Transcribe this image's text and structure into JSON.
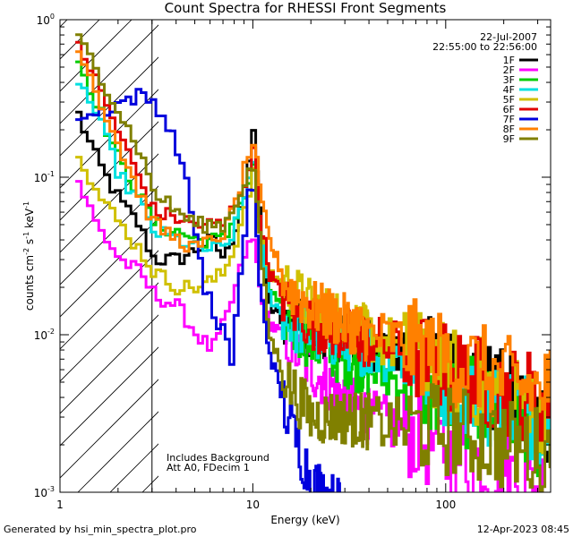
{
  "chart_data": {
    "type": "line",
    "title": "Count Spectra for RHESSI Front Segments",
    "xlabel": "Energy (keV)",
    "ylabel": "counts cm⁻² s⁻¹ keV⁻¹",
    "ylabel_parts": {
      "base": "counts cm",
      "sup1": "-2",
      "mid": " s",
      "sup2": "-1",
      "unit": " keV",
      "sup3": "-1"
    },
    "x_scale": "log",
    "y_scale": "log",
    "xlim": [
      1,
      350
    ],
    "ylim": [
      0.001,
      1
    ],
    "x_ticks": [
      {
        "value": 1,
        "label": "1"
      },
      {
        "value": 10,
        "label": "10"
      },
      {
        "value": 100,
        "label": "100"
      }
    ],
    "y_ticks": [
      {
        "value": 0.001,
        "label": "10",
        "exp": "-3"
      },
      {
        "value": 0.01,
        "label": "10",
        "exp": "-2"
      },
      {
        "value": 0.1,
        "label": "10",
        "exp": "-1"
      },
      {
        "value": 1,
        "label": "10",
        "exp": "0"
      }
    ],
    "date": "22-Jul-2007",
    "time_range": "22:55:00 to 22:56:00",
    "shaded_region_upper_keV": 3,
    "annotations": [
      "Includes Background",
      "Att A0, FDecim 1"
    ],
    "footer_left": "Generated by hsi_min_spectra_plot.pro",
    "footer_right": "12-Apr-2023 08:45",
    "series": [
      {
        "name": "1F",
        "color": "#000000",
        "anchors": [
          [
            1.2,
            0.25
          ],
          [
            1.5,
            0.13
          ],
          [
            2,
            0.07
          ],
          [
            2.5,
            0.05
          ],
          [
            3,
            0.03
          ],
          [
            4,
            0.03
          ],
          [
            5,
            0.035
          ],
          [
            6,
            0.04
          ],
          [
            7,
            0.03
          ],
          [
            8,
            0.05
          ],
          [
            9,
            0.1
          ],
          [
            10,
            0.2
          ],
          [
            10.7,
            0.06
          ],
          [
            12,
            0.015
          ],
          [
            15,
            0.012
          ],
          [
            20,
            0.011
          ],
          [
            30,
            0.01
          ],
          [
            40,
            0.009
          ],
          [
            60,
            0.008
          ],
          [
            100,
            0.006
          ],
          [
            150,
            0.005
          ],
          [
            200,
            0.004
          ],
          [
            300,
            0.003
          ],
          [
            350,
            0.003
          ]
        ]
      },
      {
        "name": "2F",
        "color": "#ff00ff",
        "anchors": [
          [
            1.2,
            0.095
          ],
          [
            1.5,
            0.05
          ],
          [
            2,
            0.03
          ],
          [
            2.5,
            0.025
          ],
          [
            3,
            0.018
          ],
          [
            4,
            0.015
          ],
          [
            5,
            0.01
          ],
          [
            6,
            0.008
          ],
          [
            7,
            0.012
          ],
          [
            8,
            0.02
          ],
          [
            9,
            0.035
          ],
          [
            10,
            0.04
          ],
          [
            10.7,
            0.02
          ],
          [
            12,
            0.012
          ],
          [
            15,
            0.009
          ],
          [
            20,
            0.006
          ],
          [
            30,
            0.004
          ],
          [
            40,
            0.003
          ],
          [
            60,
            0.0025
          ],
          [
            100,
            0.0018
          ],
          [
            150,
            0.0015
          ],
          [
            200,
            0.0013
          ],
          [
            300,
            0.0011
          ],
          [
            350,
            0.0011
          ]
        ]
      },
      {
        "name": "3F",
        "color": "#00cc00",
        "anchors": [
          [
            1.2,
            0.55
          ],
          [
            1.5,
            0.3
          ],
          [
            2,
            0.12
          ],
          [
            2.5,
            0.08
          ],
          [
            3,
            0.05
          ],
          [
            4,
            0.045
          ],
          [
            5,
            0.04
          ],
          [
            6,
            0.04
          ],
          [
            7,
            0.04
          ],
          [
            8,
            0.06
          ],
          [
            9,
            0.08
          ],
          [
            10,
            0.12
          ],
          [
            10.7,
            0.05
          ],
          [
            12,
            0.02
          ],
          [
            15,
            0.012
          ],
          [
            20,
            0.009
          ],
          [
            30,
            0.007
          ],
          [
            40,
            0.006
          ],
          [
            60,
            0.005
          ],
          [
            100,
            0.004
          ],
          [
            150,
            0.0035
          ],
          [
            200,
            0.003
          ],
          [
            300,
            0.0025
          ],
          [
            350,
            0.0025
          ]
        ]
      },
      {
        "name": "4F",
        "color": "#00e0e0",
        "anchors": [
          [
            1.2,
            0.42
          ],
          [
            1.5,
            0.25
          ],
          [
            2,
            0.1
          ],
          [
            2.5,
            0.07
          ],
          [
            3,
            0.045
          ],
          [
            4,
            0.04
          ],
          [
            5,
            0.035
          ],
          [
            6,
            0.035
          ],
          [
            7,
            0.035
          ],
          [
            8,
            0.05
          ],
          [
            9,
            0.08
          ],
          [
            10,
            0.15
          ],
          [
            10.7,
            0.05
          ],
          [
            12,
            0.018
          ],
          [
            15,
            0.012
          ],
          [
            20,
            0.01
          ],
          [
            30,
            0.009
          ],
          [
            40,
            0.008
          ],
          [
            60,
            0.007
          ],
          [
            100,
            0.005
          ],
          [
            150,
            0.004
          ],
          [
            200,
            0.0035
          ],
          [
            300,
            0.003
          ],
          [
            350,
            0.003
          ]
        ]
      },
      {
        "name": "5F",
        "color": "#d0c000",
        "anchors": [
          [
            1.2,
            0.15
          ],
          [
            1.5,
            0.08
          ],
          [
            2,
            0.05
          ],
          [
            2.5,
            0.035
          ],
          [
            3,
            0.025
          ],
          [
            4,
            0.02
          ],
          [
            5,
            0.02
          ],
          [
            6,
            0.022
          ],
          [
            7,
            0.025
          ],
          [
            8,
            0.04
          ],
          [
            9,
            0.07
          ],
          [
            10,
            0.12
          ],
          [
            10.7,
            0.05
          ],
          [
            12,
            0.025
          ],
          [
            15,
            0.02
          ],
          [
            20,
            0.015
          ],
          [
            30,
            0.012
          ],
          [
            40,
            0.01
          ],
          [
            60,
            0.008
          ],
          [
            100,
            0.006
          ],
          [
            150,
            0.005
          ],
          [
            200,
            0.004
          ],
          [
            300,
            0.0035
          ],
          [
            350,
            0.0035
          ]
        ]
      },
      {
        "name": "6F",
        "color": "#e00000",
        "anchors": [
          [
            1.2,
            0.72
          ],
          [
            1.5,
            0.4
          ],
          [
            2,
            0.18
          ],
          [
            2.5,
            0.1
          ],
          [
            3,
            0.06
          ],
          [
            4,
            0.055
          ],
          [
            5,
            0.05
          ],
          [
            6,
            0.05
          ],
          [
            7,
            0.05
          ],
          [
            8,
            0.07
          ],
          [
            9,
            0.1
          ],
          [
            10,
            0.15
          ],
          [
            10.7,
            0.06
          ],
          [
            12,
            0.025
          ],
          [
            15,
            0.015
          ],
          [
            20,
            0.012
          ],
          [
            30,
            0.01
          ],
          [
            40,
            0.009
          ],
          [
            60,
            0.008
          ],
          [
            100,
            0.006
          ],
          [
            150,
            0.005
          ],
          [
            200,
            0.0045
          ],
          [
            300,
            0.004
          ],
          [
            350,
            0.004
          ]
        ]
      },
      {
        "name": "7F",
        "color": "#0000dd",
        "anchors": [
          [
            1.2,
            0.25
          ],
          [
            1.5,
            0.25
          ],
          [
            2,
            0.3
          ],
          [
            2.5,
            0.33
          ],
          [
            3,
            0.3
          ],
          [
            3.3,
            0.25
          ],
          [
            4,
            0.15
          ],
          [
            4.5,
            0.08
          ],
          [
            5,
            0.04
          ],
          [
            5.5,
            0.02
          ],
          [
            6,
            0.015
          ],
          [
            6.5,
            0.01
          ],
          [
            7,
            0.012
          ],
          [
            7.5,
            0.005
          ],
          [
            8,
            0.015
          ],
          [
            9,
            0.05
          ],
          [
            9.5,
            0.1
          ],
          [
            10,
            0.08
          ],
          [
            10.7,
            0.02
          ],
          [
            12,
            0.008
          ],
          [
            15,
            0.003
          ],
          [
            17,
            0.002
          ],
          [
            20,
            0.0012
          ],
          [
            25,
            0.0009
          ],
          [
            30,
            0.0008
          ]
        ]
      },
      {
        "name": "8F",
        "color": "#ff8000",
        "anchors": [
          [
            1.2,
            0.7
          ],
          [
            1.5,
            0.35
          ],
          [
            2,
            0.15
          ],
          [
            2.5,
            0.08
          ],
          [
            3,
            0.05
          ],
          [
            4,
            0.04
          ],
          [
            5,
            0.035
          ],
          [
            6,
            0.04
          ],
          [
            7,
            0.045
          ],
          [
            8,
            0.07
          ],
          [
            9,
            0.12
          ],
          [
            10,
            0.18
          ],
          [
            10.7,
            0.08
          ],
          [
            12,
            0.04
          ],
          [
            15,
            0.02
          ],
          [
            20,
            0.015
          ],
          [
            30,
            0.012
          ],
          [
            40,
            0.01
          ],
          [
            60,
            0.009
          ],
          [
            100,
            0.007
          ],
          [
            150,
            0.006
          ],
          [
            200,
            0.005
          ],
          [
            300,
            0.0045
          ],
          [
            350,
            0.0045
          ]
        ]
      },
      {
        "name": "9F",
        "color": "#808000",
        "anchors": [
          [
            1.2,
            0.75
          ],
          [
            1.5,
            0.5
          ],
          [
            2,
            0.25
          ],
          [
            2.5,
            0.15
          ],
          [
            3,
            0.08
          ],
          [
            4,
            0.06
          ],
          [
            5,
            0.05
          ],
          [
            6,
            0.05
          ],
          [
            7,
            0.05
          ],
          [
            8,
            0.07
          ],
          [
            9,
            0.1
          ],
          [
            10,
            0.12
          ],
          [
            10.7,
            0.04
          ],
          [
            12,
            0.01
          ],
          [
            15,
            0.005
          ],
          [
            20,
            0.003
          ],
          [
            30,
            0.003
          ],
          [
            40,
            0.0028
          ],
          [
            60,
            0.0026
          ],
          [
            100,
            0.0025
          ],
          [
            150,
            0.0022
          ],
          [
            200,
            0.002
          ],
          [
            300,
            0.0018
          ],
          [
            350,
            0.0018
          ]
        ]
      }
    ]
  }
}
